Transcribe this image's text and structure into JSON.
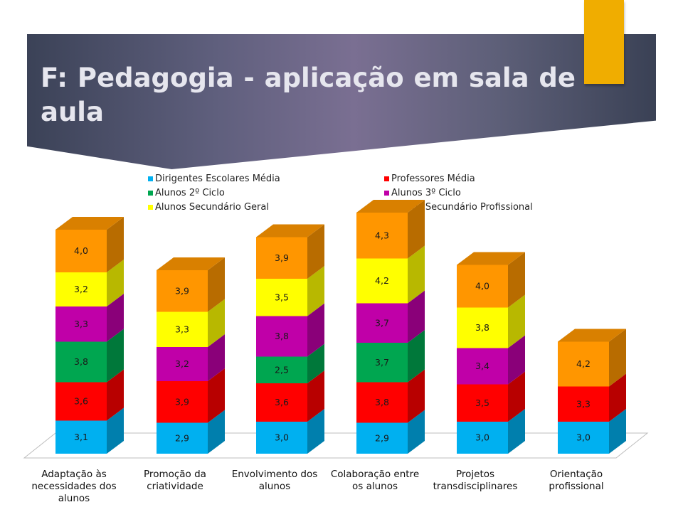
{
  "slide": {
    "title": "F: Pedagogia - aplicação em sala de aula",
    "colors": {
      "title_band": "#5f5f7d",
      "accent_tab": "#f0ad00",
      "title_text": "#e6e6ee"
    }
  },
  "chart_data": {
    "type": "bar",
    "stacked": true,
    "style": "3d",
    "legend_position": "top",
    "categories": [
      "Adaptação às necessidades dos alunos",
      "Promoção da criatividade",
      "Envolvimento dos alunos",
      "Colaboração entre os alunos",
      "Projetos transdisciplinares",
      "Orientação profissional"
    ],
    "series": [
      {
        "name": "Dirigentes Escolares Média",
        "color": "#00b0f0",
        "values": [
          "3,1",
          "2,9",
          "3,0",
          "2,9",
          "3,0",
          "3,0"
        ]
      },
      {
        "name": "Professores Média",
        "color": "#ff0000",
        "values": [
          "3,6",
          "3,9",
          "3,6",
          "3,8",
          "3,5",
          "3,3"
        ]
      },
      {
        "name": "Alunos 2º Ciclo",
        "color": "#00a650",
        "values": [
          "3,8",
          null,
          "2,5",
          "3,7",
          null,
          null
        ]
      },
      {
        "name": "Alunos 3º Ciclo",
        "color": "#c000a8",
        "values": [
          "3,3",
          "3,2",
          "3,8",
          "3,7",
          "3,4",
          null
        ]
      },
      {
        "name": "Alunos Secundário Geral",
        "color": "#ffff00",
        "values": [
          "3,2",
          "3,3",
          "3,5",
          "4,2",
          "3,8",
          null
        ]
      },
      {
        "name": "Alunos Secundário Profissional",
        "color": "#ff9600",
        "values": [
          "4,0",
          "3,9",
          "3,9",
          "4,3",
          "4,0",
          "4,2"
        ]
      }
    ]
  }
}
